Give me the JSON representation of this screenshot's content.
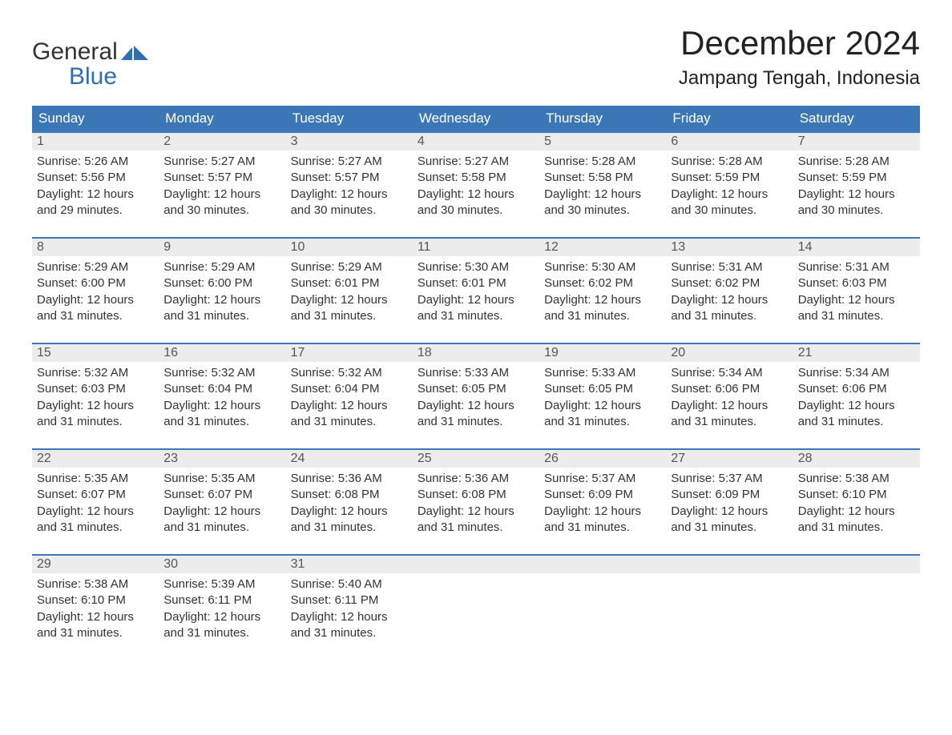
{
  "branding": {
    "logo_top": "General",
    "logo_bottom": "Blue",
    "brand_color": "#2f6eb0"
  },
  "header": {
    "month_title": "December 2024",
    "location": "Jampang Tengah, Indonesia"
  },
  "calendar": {
    "type": "table",
    "background_color": "#ffffff",
    "header_bg": "#3b77b6",
    "header_text_color": "#ffffff",
    "row_border_color": "#3b77b6",
    "daynum_bg": "#ececec",
    "text_color": "#333333",
    "columns": [
      "Sunday",
      "Monday",
      "Tuesday",
      "Wednesday",
      "Thursday",
      "Friday",
      "Saturday"
    ],
    "weeks": [
      [
        {
          "day": "1",
          "sunrise": "Sunrise: 5:26 AM",
          "sunset": "Sunset: 5:56 PM",
          "daylight1": "Daylight: 12 hours",
          "daylight2": "and 29 minutes."
        },
        {
          "day": "2",
          "sunrise": "Sunrise: 5:27 AM",
          "sunset": "Sunset: 5:57 PM",
          "daylight1": "Daylight: 12 hours",
          "daylight2": "and 30 minutes."
        },
        {
          "day": "3",
          "sunrise": "Sunrise: 5:27 AM",
          "sunset": "Sunset: 5:57 PM",
          "daylight1": "Daylight: 12 hours",
          "daylight2": "and 30 minutes."
        },
        {
          "day": "4",
          "sunrise": "Sunrise: 5:27 AM",
          "sunset": "Sunset: 5:58 PM",
          "daylight1": "Daylight: 12 hours",
          "daylight2": "and 30 minutes."
        },
        {
          "day": "5",
          "sunrise": "Sunrise: 5:28 AM",
          "sunset": "Sunset: 5:58 PM",
          "daylight1": "Daylight: 12 hours",
          "daylight2": "and 30 minutes."
        },
        {
          "day": "6",
          "sunrise": "Sunrise: 5:28 AM",
          "sunset": "Sunset: 5:59 PM",
          "daylight1": "Daylight: 12 hours",
          "daylight2": "and 30 minutes."
        },
        {
          "day": "7",
          "sunrise": "Sunrise: 5:28 AM",
          "sunset": "Sunset: 5:59 PM",
          "daylight1": "Daylight: 12 hours",
          "daylight2": "and 30 minutes."
        }
      ],
      [
        {
          "day": "8",
          "sunrise": "Sunrise: 5:29 AM",
          "sunset": "Sunset: 6:00 PM",
          "daylight1": "Daylight: 12 hours",
          "daylight2": "and 31 minutes."
        },
        {
          "day": "9",
          "sunrise": "Sunrise: 5:29 AM",
          "sunset": "Sunset: 6:00 PM",
          "daylight1": "Daylight: 12 hours",
          "daylight2": "and 31 minutes."
        },
        {
          "day": "10",
          "sunrise": "Sunrise: 5:29 AM",
          "sunset": "Sunset: 6:01 PM",
          "daylight1": "Daylight: 12 hours",
          "daylight2": "and 31 minutes."
        },
        {
          "day": "11",
          "sunrise": "Sunrise: 5:30 AM",
          "sunset": "Sunset: 6:01 PM",
          "daylight1": "Daylight: 12 hours",
          "daylight2": "and 31 minutes."
        },
        {
          "day": "12",
          "sunrise": "Sunrise: 5:30 AM",
          "sunset": "Sunset: 6:02 PM",
          "daylight1": "Daylight: 12 hours",
          "daylight2": "and 31 minutes."
        },
        {
          "day": "13",
          "sunrise": "Sunrise: 5:31 AM",
          "sunset": "Sunset: 6:02 PM",
          "daylight1": "Daylight: 12 hours",
          "daylight2": "and 31 minutes."
        },
        {
          "day": "14",
          "sunrise": "Sunrise: 5:31 AM",
          "sunset": "Sunset: 6:03 PM",
          "daylight1": "Daylight: 12 hours",
          "daylight2": "and 31 minutes."
        }
      ],
      [
        {
          "day": "15",
          "sunrise": "Sunrise: 5:32 AM",
          "sunset": "Sunset: 6:03 PM",
          "daylight1": "Daylight: 12 hours",
          "daylight2": "and 31 minutes."
        },
        {
          "day": "16",
          "sunrise": "Sunrise: 5:32 AM",
          "sunset": "Sunset: 6:04 PM",
          "daylight1": "Daylight: 12 hours",
          "daylight2": "and 31 minutes."
        },
        {
          "day": "17",
          "sunrise": "Sunrise: 5:32 AM",
          "sunset": "Sunset: 6:04 PM",
          "daylight1": "Daylight: 12 hours",
          "daylight2": "and 31 minutes."
        },
        {
          "day": "18",
          "sunrise": "Sunrise: 5:33 AM",
          "sunset": "Sunset: 6:05 PM",
          "daylight1": "Daylight: 12 hours",
          "daylight2": "and 31 minutes."
        },
        {
          "day": "19",
          "sunrise": "Sunrise: 5:33 AM",
          "sunset": "Sunset: 6:05 PM",
          "daylight1": "Daylight: 12 hours",
          "daylight2": "and 31 minutes."
        },
        {
          "day": "20",
          "sunrise": "Sunrise: 5:34 AM",
          "sunset": "Sunset: 6:06 PM",
          "daylight1": "Daylight: 12 hours",
          "daylight2": "and 31 minutes."
        },
        {
          "day": "21",
          "sunrise": "Sunrise: 5:34 AM",
          "sunset": "Sunset: 6:06 PM",
          "daylight1": "Daylight: 12 hours",
          "daylight2": "and 31 minutes."
        }
      ],
      [
        {
          "day": "22",
          "sunrise": "Sunrise: 5:35 AM",
          "sunset": "Sunset: 6:07 PM",
          "daylight1": "Daylight: 12 hours",
          "daylight2": "and 31 minutes."
        },
        {
          "day": "23",
          "sunrise": "Sunrise: 5:35 AM",
          "sunset": "Sunset: 6:07 PM",
          "daylight1": "Daylight: 12 hours",
          "daylight2": "and 31 minutes."
        },
        {
          "day": "24",
          "sunrise": "Sunrise: 5:36 AM",
          "sunset": "Sunset: 6:08 PM",
          "daylight1": "Daylight: 12 hours",
          "daylight2": "and 31 minutes."
        },
        {
          "day": "25",
          "sunrise": "Sunrise: 5:36 AM",
          "sunset": "Sunset: 6:08 PM",
          "daylight1": "Daylight: 12 hours",
          "daylight2": "and 31 minutes."
        },
        {
          "day": "26",
          "sunrise": "Sunrise: 5:37 AM",
          "sunset": "Sunset: 6:09 PM",
          "daylight1": "Daylight: 12 hours",
          "daylight2": "and 31 minutes."
        },
        {
          "day": "27",
          "sunrise": "Sunrise: 5:37 AM",
          "sunset": "Sunset: 6:09 PM",
          "daylight1": "Daylight: 12 hours",
          "daylight2": "and 31 minutes."
        },
        {
          "day": "28",
          "sunrise": "Sunrise: 5:38 AM",
          "sunset": "Sunset: 6:10 PM",
          "daylight1": "Daylight: 12 hours",
          "daylight2": "and 31 minutes."
        }
      ],
      [
        {
          "day": "29",
          "sunrise": "Sunrise: 5:38 AM",
          "sunset": "Sunset: 6:10 PM",
          "daylight1": "Daylight: 12 hours",
          "daylight2": "and 31 minutes."
        },
        {
          "day": "30",
          "sunrise": "Sunrise: 5:39 AM",
          "sunset": "Sunset: 6:11 PM",
          "daylight1": "Daylight: 12 hours",
          "daylight2": "and 31 minutes."
        },
        {
          "day": "31",
          "sunrise": "Sunrise: 5:40 AM",
          "sunset": "Sunset: 6:11 PM",
          "daylight1": "Daylight: 12 hours",
          "daylight2": "and 31 minutes."
        },
        {
          "day": "",
          "empty": true
        },
        {
          "day": "",
          "empty": true
        },
        {
          "day": "",
          "empty": true
        },
        {
          "day": "",
          "empty": true
        }
      ]
    ]
  }
}
